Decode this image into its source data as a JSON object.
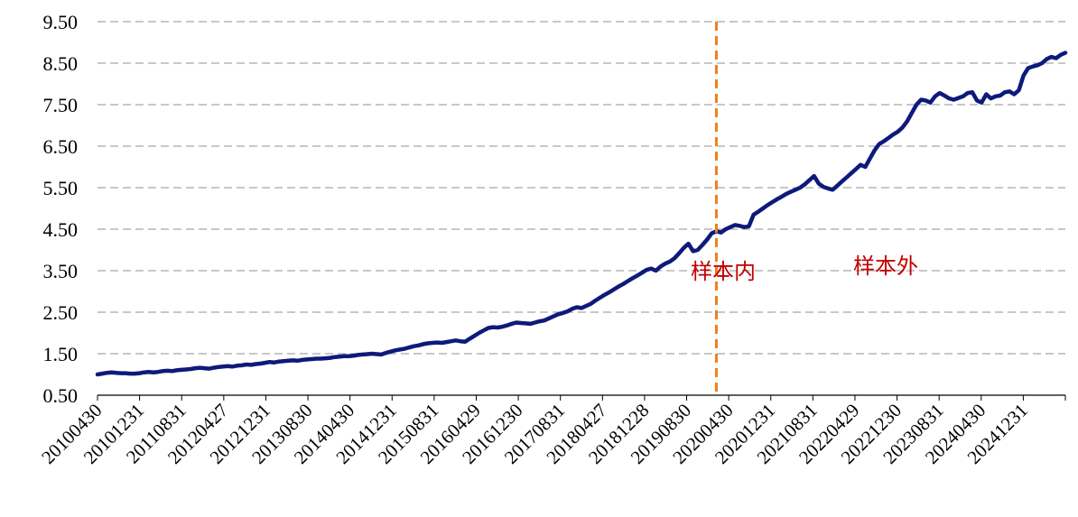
{
  "chart_data": {
    "type": "line",
    "title": "",
    "xlabel": "",
    "ylabel": "",
    "ylim": [
      0.5,
      9.5
    ],
    "yticks": [
      "0.50",
      "1.50",
      "2.50",
      "3.50",
      "4.50",
      "5.50",
      "6.50",
      "7.50",
      "8.50",
      "9.50"
    ],
    "xticks": [
      "20100430",
      "20101231",
      "20110831",
      "20120427",
      "20121231",
      "20130830",
      "20140430",
      "20141231",
      "20150831",
      "20160429",
      "20161230",
      "20170831",
      "20180427",
      "20181228",
      "20190830",
      "20200430",
      "20201231",
      "20210831",
      "20220429",
      "20221230",
      "20230831",
      "20240430",
      "20241231"
    ],
    "grid": "horizontal-dashed",
    "colors": {
      "line": "#0e1a7a",
      "split": "#f07f1c",
      "annotation": "#c00000",
      "grid": "#a6a6a6"
    },
    "split_at_index": 133,
    "annotations": {
      "in_sample": "样本内",
      "out_sample": "样本外"
    },
    "series": [
      {
        "values": [
          1.0,
          1.02,
          1.04,
          1.05,
          1.04,
          1.03,
          1.03,
          1.02,
          1.02,
          1.03,
          1.05,
          1.06,
          1.05,
          1.06,
          1.08,
          1.09,
          1.08,
          1.1,
          1.11,
          1.12,
          1.13,
          1.15,
          1.16,
          1.15,
          1.14,
          1.16,
          1.18,
          1.19,
          1.2,
          1.19,
          1.21,
          1.22,
          1.24,
          1.23,
          1.25,
          1.26,
          1.28,
          1.3,
          1.29,
          1.31,
          1.32,
          1.33,
          1.34,
          1.33,
          1.35,
          1.36,
          1.37,
          1.38,
          1.38,
          1.39,
          1.4,
          1.42,
          1.43,
          1.44,
          1.44,
          1.45,
          1.47,
          1.48,
          1.49,
          1.5,
          1.49,
          1.48,
          1.52,
          1.55,
          1.58,
          1.6,
          1.62,
          1.65,
          1.68,
          1.7,
          1.73,
          1.75,
          1.76,
          1.77,
          1.76,
          1.78,
          1.8,
          1.82,
          1.8,
          1.79,
          1.86,
          1.93,
          2.0,
          2.06,
          2.12,
          2.14,
          2.13,
          2.15,
          2.18,
          2.22,
          2.25,
          2.24,
          2.23,
          2.22,
          2.25,
          2.28,
          2.3,
          2.35,
          2.4,
          2.45,
          2.48,
          2.52,
          2.58,
          2.62,
          2.6,
          2.65,
          2.7,
          2.78,
          2.85,
          2.92,
          2.98,
          3.05,
          3.12,
          3.18,
          3.25,
          3.32,
          3.38,
          3.45,
          3.52,
          3.55,
          3.5,
          3.6,
          3.67,
          3.72,
          3.8,
          3.92,
          4.05,
          4.15,
          3.97,
          4.0,
          4.12,
          4.25,
          4.4,
          4.45,
          4.42,
          4.5,
          4.55,
          4.6,
          4.58,
          4.55,
          4.57,
          4.85,
          4.92,
          5.0,
          5.08,
          5.15,
          5.22,
          5.28,
          5.35,
          5.4,
          5.45,
          5.5,
          5.58,
          5.68,
          5.78,
          5.6,
          5.52,
          5.48,
          5.45,
          5.55,
          5.65,
          5.75,
          5.85,
          5.95,
          6.05,
          6.0,
          6.2,
          6.4,
          6.55,
          6.62,
          6.7,
          6.78,
          6.85,
          6.95,
          7.1,
          7.3,
          7.5,
          7.62,
          7.6,
          7.55,
          7.7,
          7.78,
          7.72,
          7.65,
          7.62,
          7.66,
          7.7,
          7.78,
          7.8,
          7.6,
          7.55,
          7.75,
          7.65,
          7.7,
          7.72,
          7.8,
          7.82,
          7.75,
          7.85,
          8.2,
          8.38,
          8.42,
          8.45,
          8.5,
          8.6,
          8.65,
          8.62,
          8.7,
          8.75
        ]
      }
    ]
  }
}
